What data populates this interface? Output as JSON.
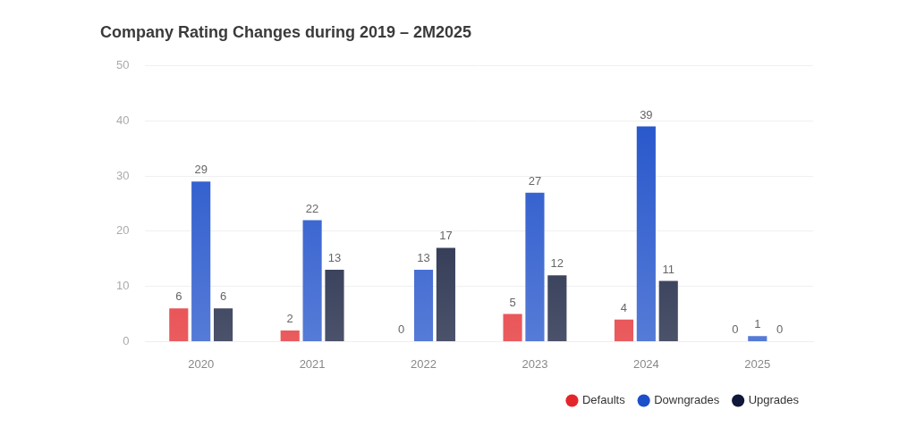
{
  "chart_data": {
    "type": "bar",
    "title": "Company Rating Changes during 2019 – 2M2025",
    "categories": [
      "2020",
      "2021",
      "2022",
      "2023",
      "2024",
      "2025"
    ],
    "series": [
      {
        "name": "Defaults",
        "color": "#e3262a",
        "values": [
          6,
          2,
          0,
          5,
          4,
          0
        ]
      },
      {
        "name": "Downgrades",
        "color": "#1d4fc9",
        "values": [
          29,
          22,
          13,
          27,
          39,
          1
        ]
      },
      {
        "name": "Upgrades",
        "color": "#0f1838",
        "values": [
          6,
          13,
          17,
          12,
          11,
          0
        ]
      }
    ],
    "ylim": [
      0,
      50
    ],
    "yticks": [
      0,
      10,
      20,
      30,
      40,
      50
    ],
    "grid": true,
    "legend": "bottom",
    "data_labels": true
  }
}
